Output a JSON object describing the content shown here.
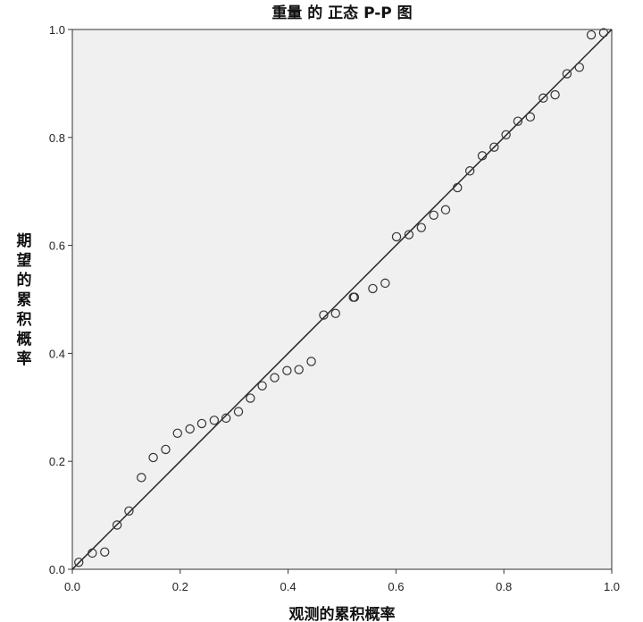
{
  "chart_data": {
    "type": "scatter",
    "title": "重量 的 正态 P-P 图",
    "xlabel": "观测的累积概率",
    "ylabel": "期望的累积概率",
    "xlim": [
      0,
      1
    ],
    "ylim": [
      0,
      1
    ],
    "xticks": [
      "0.0",
      "0.2",
      "0.4",
      "0.6",
      "0.8",
      "1.0"
    ],
    "yticks": [
      "0.0",
      "0.2",
      "0.4",
      "0.6",
      "0.8",
      "1.0"
    ],
    "grid": false,
    "colors": {
      "plot_background": "#f0f0f0",
      "marker": "#333333",
      "line": "#222222"
    },
    "reference_line": [
      [
        0,
        0
      ],
      [
        1,
        1
      ]
    ],
    "points": [
      [
        0.012,
        0.013
      ],
      [
        0.037,
        0.03
      ],
      [
        0.06,
        0.032
      ],
      [
        0.083,
        0.082
      ],
      [
        0.105,
        0.108
      ],
      [
        0.128,
        0.17
      ],
      [
        0.15,
        0.207
      ],
      [
        0.173,
        0.222
      ],
      [
        0.195,
        0.252
      ],
      [
        0.218,
        0.26
      ],
      [
        0.24,
        0.27
      ],
      [
        0.263,
        0.276
      ],
      [
        0.285,
        0.28
      ],
      [
        0.308,
        0.292
      ],
      [
        0.33,
        0.317
      ],
      [
        0.352,
        0.34
      ],
      [
        0.375,
        0.355
      ],
      [
        0.398,
        0.368
      ],
      [
        0.42,
        0.37
      ],
      [
        0.443,
        0.385
      ],
      [
        0.466,
        0.471
      ],
      [
        0.488,
        0.474
      ],
      [
        0.521,
        0.504
      ],
      [
        0.523,
        0.504
      ],
      [
        0.557,
        0.52
      ],
      [
        0.58,
        0.53
      ],
      [
        0.601,
        0.616
      ],
      [
        0.624,
        0.62
      ],
      [
        0.647,
        0.633
      ],
      [
        0.67,
        0.656
      ],
      [
        0.692,
        0.666
      ],
      [
        0.714,
        0.707
      ],
      [
        0.737,
        0.738
      ],
      [
        0.76,
        0.766
      ],
      [
        0.782,
        0.782
      ],
      [
        0.804,
        0.805
      ],
      [
        0.826,
        0.83
      ],
      [
        0.849,
        0.838
      ],
      [
        0.873,
        0.873
      ],
      [
        0.895,
        0.879
      ],
      [
        0.917,
        0.918
      ],
      [
        0.94,
        0.93
      ],
      [
        0.962,
        0.99
      ],
      [
        0.985,
        0.994
      ]
    ]
  }
}
